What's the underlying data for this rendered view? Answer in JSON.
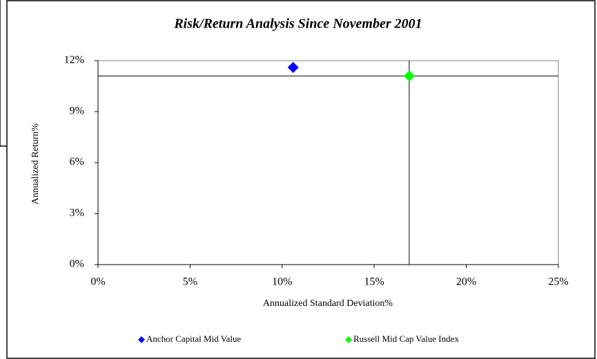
{
  "chart_data": {
    "type": "scatter",
    "title": "Risk/Return Analysis Since November 2001",
    "x_label": "Annualized Standard Deviation%",
    "y_label": "Annualized Return%",
    "xlim": [
      0,
      25
    ],
    "ylim": [
      0,
      12
    ],
    "xticks": [
      {
        "value": 0,
        "label": "0%"
      },
      {
        "value": 5,
        "label": "5%"
      },
      {
        "value": 10,
        "label": "10%"
      },
      {
        "value": 15,
        "label": "15%"
      },
      {
        "value": 20,
        "label": "20%"
      },
      {
        "value": 25,
        "label": "25%"
      }
    ],
    "yticks": [
      {
        "value": 0,
        "label": "0%"
      },
      {
        "value": 3,
        "label": "3%"
      },
      {
        "value": 6,
        "label": "6%"
      },
      {
        "value": 9,
        "label": "9%"
      },
      {
        "value": 12,
        "label": "12%"
      }
    ],
    "series": [
      {
        "name": "Anchor Capital Mid Value",
        "color": "#0000ff",
        "x": [
          10.6
        ],
        "values": [
          11.6
        ]
      },
      {
        "name": "Russell Mid Cap Value Index",
        "color": "#00ff00",
        "x": [
          16.9
        ],
        "values": [
          11.1
        ]
      }
    ]
  }
}
